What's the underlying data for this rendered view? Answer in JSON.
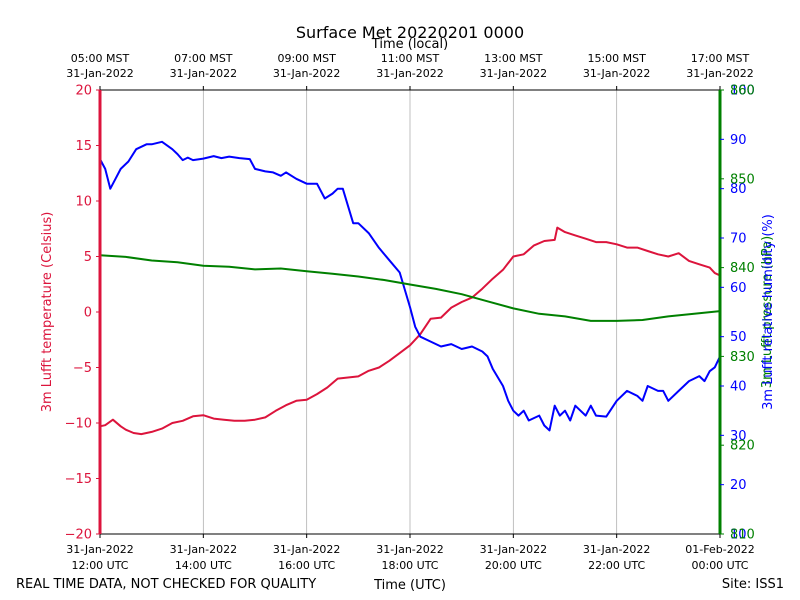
{
  "title": "Surface Met 20220201 0000",
  "footer": {
    "left": "REAL TIME DATA, NOT CHECKED FOR QUALITY",
    "center": "Time (UTC)",
    "right": "Site: ISS1"
  },
  "colors": {
    "temperature": "#dc143c",
    "relative_humidity": "#0000ff",
    "pressure": "#008000",
    "grid": "#b0b0b0"
  },
  "chart_data": {
    "type": "line",
    "title": "Surface Met 20220201 0000",
    "x_label_bottom": "Time (UTC)",
    "x_label_top": "Time (local)",
    "x_range_utc_hours": [
      12.0,
      24.0
    ],
    "x_ticks_bottom": [
      {
        "x": 12,
        "l1": "31-Jan-2022",
        "l2": "12:00 UTC"
      },
      {
        "x": 14,
        "l1": "31-Jan-2022",
        "l2": "14:00 UTC"
      },
      {
        "x": 16,
        "l1": "31-Jan-2022",
        "l2": "16:00 UTC"
      },
      {
        "x": 18,
        "l1": "31-Jan-2022",
        "l2": "18:00 UTC"
      },
      {
        "x": 20,
        "l1": "31-Jan-2022",
        "l2": "20:00 UTC"
      },
      {
        "x": 22,
        "l1": "31-Jan-2022",
        "l2": "22:00 UTC"
      },
      {
        "x": 24,
        "l1": "01-Feb-2022",
        "l2": "00:00 UTC"
      }
    ],
    "x_ticks_top": [
      {
        "x": 12,
        "l1": "05:00 MST",
        "l2": "31-Jan-2022"
      },
      {
        "x": 14,
        "l1": "07:00 MST",
        "l2": "31-Jan-2022"
      },
      {
        "x": 16,
        "l1": "09:00 MST",
        "l2": "31-Jan-2022"
      },
      {
        "x": 18,
        "l1": "11:00 MST",
        "l2": "31-Jan-2022"
      },
      {
        "x": 20,
        "l1": "13:00 MST",
        "l2": "31-Jan-2022"
      },
      {
        "x": 22,
        "l1": "15:00 MST",
        "l2": "31-Jan-2022"
      },
      {
        "x": 24,
        "l1": "17:00 MST",
        "l2": "31-Jan-2022"
      }
    ],
    "axes": {
      "left": {
        "label": "3m Lufft temperature (Celsius)",
        "ylim": [
          -20,
          20
        ],
        "ticks": [
          -20,
          -15,
          -10,
          -5,
          0,
          5,
          10,
          15,
          20
        ]
      },
      "right_rh": {
        "label": "3m Lufft relative humidity (%)",
        "ylim": [
          10,
          100
        ],
        "ticks": [
          10,
          20,
          30,
          40,
          50,
          60,
          70,
          80,
          90,
          100
        ]
      },
      "right_p": {
        "label": "3m Lufft pressure (hPa)",
        "ylim": [
          810,
          860
        ],
        "ticks": [
          810,
          820,
          830,
          840,
          850,
          860
        ]
      }
    },
    "series": [
      {
        "key": "temperature",
        "x": [
          12.0,
          12.1,
          12.25,
          12.4,
          12.5,
          12.65,
          12.8,
          13.0,
          13.2,
          13.4,
          13.6,
          13.8,
          14.0,
          14.2,
          14.4,
          14.6,
          14.8,
          15.0,
          15.2,
          15.4,
          15.6,
          15.8,
          16.0,
          16.2,
          16.4,
          16.6,
          16.8,
          17.0,
          17.2,
          17.4,
          17.6,
          17.8,
          18.0,
          18.2,
          18.4,
          18.6,
          18.8,
          19.0,
          19.2,
          19.4,
          19.6,
          19.8,
          20.0,
          20.2,
          20.4,
          20.6,
          20.8,
          20.85,
          21.0,
          21.2,
          21.4,
          21.6,
          21.8,
          22.0,
          22.2,
          22.4,
          22.6,
          22.8,
          23.0,
          23.2,
          23.4,
          23.6,
          23.8,
          23.9,
          24.0
        ],
        "y": [
          -10.3,
          -10.2,
          -9.7,
          -10.3,
          -10.6,
          -10.9,
          -11.0,
          -10.8,
          -10.5,
          -10.0,
          -9.8,
          -9.4,
          -9.3,
          -9.6,
          -9.7,
          -9.8,
          -9.8,
          -9.7,
          -9.5,
          -8.9,
          -8.4,
          -8.0,
          -7.9,
          -7.4,
          -6.8,
          -6.0,
          -5.9,
          -5.8,
          -5.3,
          -5.0,
          -4.4,
          -3.7,
          -3.0,
          -2.0,
          -0.6,
          -0.5,
          0.4,
          0.9,
          1.3,
          2.1,
          3.0,
          3.8,
          5.0,
          5.2,
          6.0,
          6.4,
          6.5,
          7.6,
          7.2,
          6.9,
          6.6,
          6.3,
          6.3,
          6.1,
          5.8,
          5.8,
          5.5,
          5.2,
          5.0,
          5.3,
          4.6,
          4.3,
          4.0,
          3.5,
          3.3
        ]
      },
      {
        "key": "relative_humidity",
        "x": [
          12.0,
          12.1,
          12.2,
          12.3,
          12.4,
          12.55,
          12.7,
          12.9,
          13.0,
          13.2,
          13.4,
          13.5,
          13.6,
          13.7,
          13.8,
          14.0,
          14.2,
          14.35,
          14.5,
          14.7,
          14.9,
          15.0,
          15.2,
          15.35,
          15.5,
          15.6,
          15.8,
          16.0,
          16.2,
          16.35,
          16.5,
          16.6,
          16.7,
          16.8,
          16.9,
          17.0,
          17.2,
          17.4,
          17.6,
          17.8,
          18.0,
          18.1,
          18.2,
          18.4,
          18.6,
          18.8,
          19.0,
          19.2,
          19.4,
          19.5,
          19.6,
          19.8,
          19.9,
          20.0,
          20.1,
          20.2,
          20.3,
          20.5,
          20.6,
          20.7,
          20.8,
          20.9,
          21.0,
          21.1,
          21.2,
          21.3,
          21.4,
          21.5,
          21.6,
          21.8,
          22.0,
          22.2,
          22.4,
          22.5,
          22.6,
          22.8,
          22.9,
          23.0,
          23.2,
          23.4,
          23.6,
          23.7,
          23.8,
          23.9,
          24.0
        ],
        "y": [
          86,
          84,
          80,
          82,
          84,
          85.5,
          88,
          89,
          89,
          89.5,
          88,
          87,
          85.8,
          86.3,
          85.8,
          86.1,
          86.6,
          86.2,
          86.5,
          86.2,
          86,
          84,
          83.5,
          83.3,
          82.6,
          83.3,
          82,
          81,
          81,
          78,
          79,
          80,
          80,
          76.5,
          73,
          73,
          71,
          68,
          65.5,
          63,
          56,
          52,
          50,
          49,
          48,
          48.5,
          47.5,
          48,
          47,
          46,
          43.5,
          40,
          37,
          35,
          34,
          35,
          33,
          34,
          32,
          31,
          36,
          34,
          35,
          33,
          36,
          35,
          34,
          36,
          34,
          33.8,
          37,
          39,
          38,
          37,
          40,
          39,
          39,
          37,
          39,
          41,
          42,
          41,
          43,
          43.8,
          46
        ]
      },
      {
        "key": "pressure",
        "x": [
          12,
          12.5,
          13,
          13.5,
          14,
          14.5,
          15,
          15.5,
          16,
          16.5,
          17,
          17.5,
          18,
          18.5,
          19,
          19.5,
          20,
          20.5,
          21,
          21.5,
          22,
          22.5,
          23,
          23.5,
          24
        ],
        "y": [
          841.4,
          841.2,
          840.8,
          840.6,
          840.2,
          840.1,
          839.8,
          839.9,
          839.6,
          839.3,
          839.0,
          838.6,
          838.1,
          837.6,
          837.0,
          836.2,
          835.4,
          834.8,
          834.5,
          834.0,
          834.0,
          834.1,
          834.5,
          834.8,
          835.1
        ]
      }
    ],
    "grid": true,
    "legend": "none"
  }
}
